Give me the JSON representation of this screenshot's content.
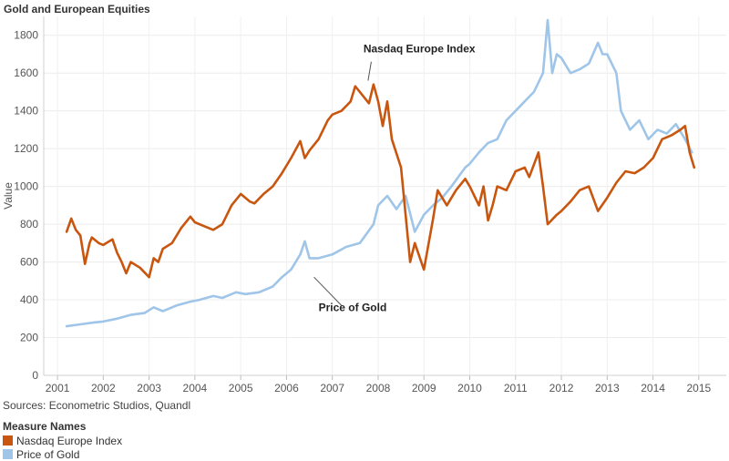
{
  "title": "Gold and European Equities",
  "source": "Sources: Econometric Studios, Quandl",
  "legend": {
    "title": "Measure Names",
    "items": [
      {
        "label": "Nasdaq Europe Index",
        "color": "#c8560f"
      },
      {
        "label": "Price of Gold",
        "color": "#9fc5e8"
      }
    ]
  },
  "chart_data": {
    "type": "line",
    "ylabel": "Value",
    "xlabel": "",
    "ylim": [
      0,
      1900
    ],
    "yticks": [
      0,
      200,
      400,
      600,
      800,
      1000,
      1200,
      1400,
      1600,
      1800
    ],
    "xlim": [
      2000.7,
      2015.6
    ],
    "xticks": [
      "2001",
      "2002",
      "2003",
      "2004",
      "2005",
      "2006",
      "2007",
      "2008",
      "2009",
      "2010",
      "2011",
      "2012",
      "2013",
      "2014",
      "2015"
    ],
    "grid": true,
    "legend_position": "bottom-left",
    "annotations": [
      {
        "text": "Nasdaq Europe Index",
        "series": "Nasdaq Europe Index"
      },
      {
        "text": "Price of Gold",
        "series": "Price of Gold"
      }
    ],
    "series": [
      {
        "name": "Nasdaq Europe Index",
        "color": "#c8560f",
        "x": [
          2001.2,
          2001.3,
          2001.4,
          2001.5,
          2001.6,
          2001.7,
          2001.75,
          2001.9,
          2002.0,
          2002.2,
          2002.3,
          2002.4,
          2002.5,
          2002.6,
          2002.8,
          2003.0,
          2003.1,
          2003.2,
          2003.3,
          2003.5,
          2003.7,
          2003.9,
          2004.0,
          2004.2,
          2004.4,
          2004.6,
          2004.8,
          2005.0,
          2005.2,
          2005.3,
          2005.5,
          2005.7,
          2005.9,
          2006.1,
          2006.3,
          2006.4,
          2006.5,
          2006.7,
          2006.9,
          2007.0,
          2007.2,
          2007.4,
          2007.5,
          2007.6,
          2007.8,
          2007.9,
          2008.0,
          2008.1,
          2008.2,
          2008.3,
          2008.5,
          2008.6,
          2008.7,
          2008.8,
          2009.0,
          2009.2,
          2009.3,
          2009.5,
          2009.7,
          2009.9,
          2010.0,
          2010.2,
          2010.3,
          2010.4,
          2010.5,
          2010.6,
          2010.8,
          2011.0,
          2011.2,
          2011.3,
          2011.5,
          2011.6,
          2011.7,
          2011.9,
          2012.0,
          2012.2,
          2012.4,
          2012.6,
          2012.8,
          2013.0,
          2013.2,
          2013.4,
          2013.6,
          2013.8,
          2014.0,
          2014.2,
          2014.4,
          2014.6,
          2014.7,
          2014.8,
          2014.9
        ],
        "y": [
          760,
          830,
          770,
          740,
          590,
          700,
          730,
          700,
          690,
          720,
          650,
          600,
          540,
          600,
          570,
          520,
          620,
          600,
          670,
          700,
          780,
          840,
          810,
          790,
          770,
          800,
          900,
          960,
          920,
          910,
          960,
          1000,
          1070,
          1150,
          1240,
          1150,
          1190,
          1250,
          1350,
          1380,
          1400,
          1450,
          1530,
          1500,
          1440,
          1540,
          1450,
          1320,
          1450,
          1250,
          1100,
          850,
          600,
          700,
          560,
          830,
          980,
          900,
          980,
          1040,
          1000,
          900,
          1000,
          820,
          900,
          1000,
          980,
          1080,
          1100,
          1050,
          1180,
          1000,
          800,
          850,
          870,
          920,
          980,
          1000,
          870,
          940,
          1020,
          1080,
          1070,
          1100,
          1150,
          1250,
          1270,
          1300,
          1320,
          1180,
          1100
        ]
      },
      {
        "name": "Price of Gold",
        "color": "#9fc5e8",
        "x": [
          2001.2,
          2001.5,
          2001.8,
          2002.0,
          2002.3,
          2002.6,
          2002.9,
          2003.1,
          2003.3,
          2003.6,
          2003.9,
          2004.1,
          2004.4,
          2004.6,
          2004.9,
          2005.1,
          2005.4,
          2005.7,
          2005.9,
          2006.1,
          2006.3,
          2006.4,
          2006.5,
          2006.7,
          2007.0,
          2007.3,
          2007.6,
          2007.9,
          2008.0,
          2008.2,
          2008.4,
          2008.6,
          2008.8,
          2009.0,
          2009.2,
          2009.4,
          2009.6,
          2009.9,
          2010.0,
          2010.2,
          2010.4,
          2010.6,
          2010.8,
          2011.0,
          2011.2,
          2011.4,
          2011.6,
          2011.7,
          2011.8,
          2011.9,
          2012.0,
          2012.2,
          2012.4,
          2012.6,
          2012.8,
          2012.9,
          2013.0,
          2013.2,
          2013.3,
          2013.5,
          2013.7,
          2013.9,
          2014.1,
          2014.3,
          2014.5,
          2014.7,
          2014.85
        ],
        "y": [
          260,
          270,
          280,
          285,
          300,
          320,
          330,
          360,
          340,
          370,
          390,
          400,
          420,
          410,
          440,
          430,
          440,
          470,
          520,
          560,
          640,
          710,
          620,
          620,
          640,
          680,
          700,
          800,
          900,
          950,
          880,
          950,
          760,
          850,
          900,
          940,
          1000,
          1100,
          1120,
          1180,
          1230,
          1250,
          1350,
          1400,
          1450,
          1500,
          1600,
          1880,
          1600,
          1700,
          1680,
          1600,
          1620,
          1650,
          1760,
          1700,
          1700,
          1600,
          1400,
          1300,
          1350,
          1250,
          1300,
          1280,
          1330,
          1250,
          1180
        ]
      }
    ]
  }
}
